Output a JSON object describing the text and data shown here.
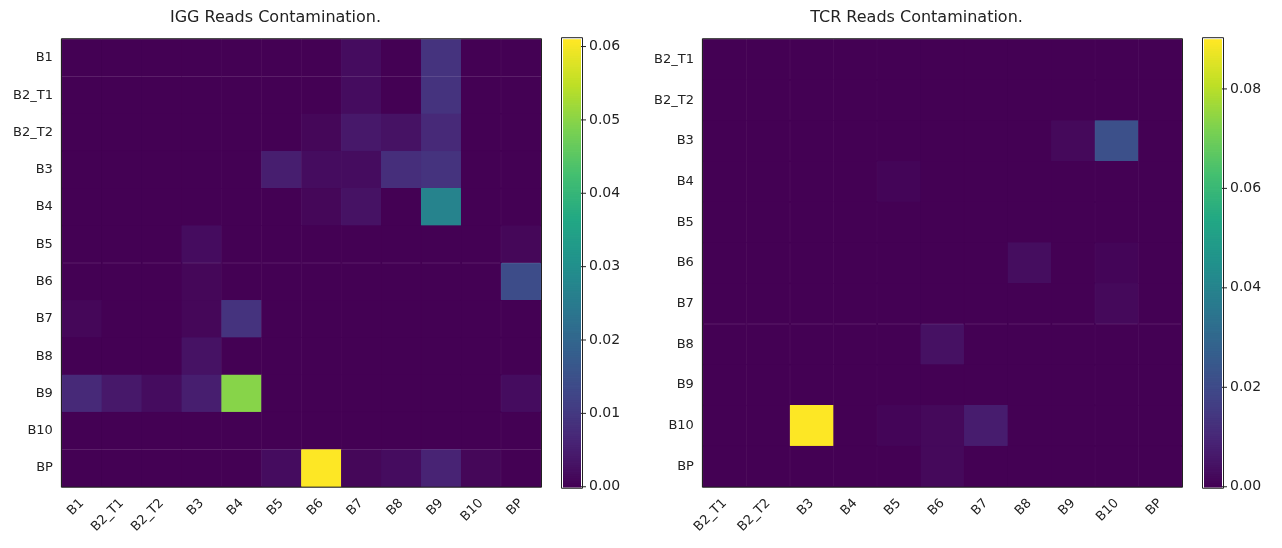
{
  "chart_data": [
    {
      "type": "heatmap",
      "title": "IGG Reads Contamination.",
      "categories": [
        "B1",
        "B2_T1",
        "B2_T2",
        "B3",
        "B4",
        "B5",
        "B6",
        "B7",
        "B8",
        "B9",
        "B10",
        "BP"
      ],
      "y_categories": [
        "B1",
        "B2_T1",
        "B2_T2",
        "B3",
        "B4",
        "B5",
        "B6",
        "B7",
        "B8",
        "B9",
        "B10",
        "BP"
      ],
      "cells": [
        [
          0,
          0,
          0,
          0,
          0,
          0,
          0,
          0.002,
          0,
          0.009,
          0,
          0
        ],
        [
          0,
          0,
          0,
          0,
          0,
          0,
          0,
          0.002,
          0,
          0.009,
          0,
          0
        ],
        [
          0,
          0,
          0,
          0,
          0,
          0,
          0.001,
          0.004,
          0.003,
          0.007,
          0,
          0
        ],
        [
          0,
          0,
          0,
          0,
          0,
          0.005,
          0.002,
          0.002,
          0.008,
          0.009,
          0,
          0
        ],
        [
          0,
          0,
          0,
          0,
          0,
          0,
          0.001,
          0.003,
          0,
          0.027,
          0,
          0
        ],
        [
          0,
          0,
          0,
          0.002,
          0,
          0,
          0,
          0,
          0,
          0,
          0,
          0.001
        ],
        [
          0,
          0,
          0,
          0.001,
          0,
          0,
          0,
          0,
          0,
          0,
          0,
          0.014
        ],
        [
          0.001,
          0,
          0,
          0.001,
          0.009,
          0,
          0,
          0,
          0,
          0,
          0,
          0
        ],
        [
          0,
          0,
          0,
          0.003,
          0,
          0,
          0,
          0,
          0,
          0,
          0,
          0
        ],
        [
          0.007,
          0.004,
          0.002,
          0.005,
          0.05,
          0,
          0,
          0,
          0,
          0,
          0,
          0.002
        ],
        [
          0,
          0,
          0,
          0,
          0,
          0,
          0,
          0,
          0,
          0,
          0,
          0
        ],
        [
          0,
          0,
          0,
          0,
          0,
          0.002,
          0.061,
          0.001,
          0.002,
          0.006,
          0.001,
          0
        ]
      ],
      "clim": [
        0,
        0.061
      ],
      "cticks": [
        {
          "value": 0,
          "label": "0.00"
        },
        {
          "value": 0.01,
          "label": "0.01"
        },
        {
          "value": 0.02,
          "label": "0.02"
        },
        {
          "value": 0.03,
          "label": "0.03"
        },
        {
          "value": 0.04,
          "label": "0.04"
        },
        {
          "value": 0.05,
          "label": "0.05"
        },
        {
          "value": 0.06,
          "label": "0.06"
        }
      ]
    },
    {
      "type": "heatmap",
      "title": "TCR Reads Contamination.",
      "categories": [
        "B2_T1",
        "B2_T2",
        "B3",
        "B4",
        "B5",
        "B6",
        "B7",
        "B8",
        "B9",
        "B10",
        "BP"
      ],
      "y_categories": [
        "B2_T1",
        "B2_T2",
        "B3",
        "B4",
        "B5",
        "B6",
        "B7",
        "B8",
        "B9",
        "B10",
        "BP"
      ],
      "cells": [
        [
          0,
          0,
          0,
          0,
          0,
          0,
          0,
          0,
          0,
          0,
          0
        ],
        [
          0,
          0,
          0,
          0,
          0,
          0,
          0,
          0,
          0,
          0,
          0
        ],
        [
          0,
          0,
          0,
          0,
          0,
          0,
          0,
          0,
          0.002,
          0.022,
          0
        ],
        [
          0,
          0,
          0,
          0,
          0.001,
          0,
          0,
          0,
          0,
          0,
          0
        ],
        [
          0,
          0,
          0,
          0,
          0,
          0,
          0,
          0,
          0,
          0,
          0
        ],
        [
          0,
          0,
          0,
          0,
          0,
          0,
          0,
          0.003,
          0,
          0.001,
          0
        ],
        [
          0,
          0,
          0,
          0,
          0,
          0,
          0,
          0,
          0,
          0.002,
          0
        ],
        [
          0,
          0,
          0,
          0,
          0,
          0.004,
          0,
          0,
          0,
          0,
          0
        ],
        [
          0,
          0,
          0,
          0,
          0,
          0,
          0,
          0,
          0,
          0,
          0
        ],
        [
          0,
          0,
          0.09,
          0,
          0.001,
          0.002,
          0.007,
          0,
          0,
          0,
          0
        ],
        [
          0,
          0,
          0,
          0,
          0,
          0.002,
          0,
          0,
          0,
          0,
          0
        ]
      ],
      "clim": [
        0,
        0.09
      ],
      "cticks": [
        {
          "value": 0,
          "label": "0.00"
        },
        {
          "value": 0.02,
          "label": "0.02"
        },
        {
          "value": 0.04,
          "label": "0.04"
        },
        {
          "value": 0.06,
          "label": "0.06"
        },
        {
          "value": 0.08,
          "label": "0.08"
        }
      ]
    }
  ]
}
